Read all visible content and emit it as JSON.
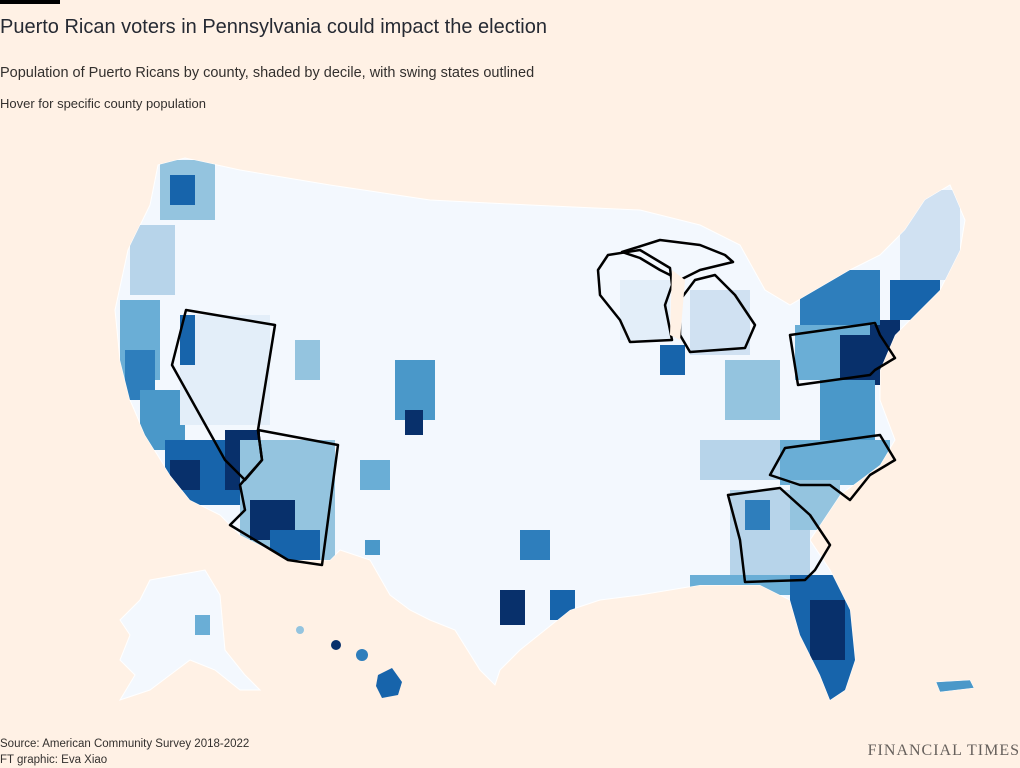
{
  "header": {
    "title": "Puerto Rican voters in Pennsylvania could impact the election",
    "subtitle": "Population of Puerto Ricans by county, shaded by decile, with swing states outlined",
    "hover_note": "Hover for specific county population"
  },
  "footer": {
    "source": "Source: American Community Survey 2018-2022",
    "credit": "FT graphic: Eva Xiao",
    "brand": "FINANCIAL TIMES"
  },
  "legend_scale": {
    "method": "decile",
    "colors": [
      "#f3f8fe",
      "#e3eef9",
      "#d0e1f2",
      "#b7d4ea",
      "#94c4df",
      "#6aaed6",
      "#4a98c9",
      "#2e7ebc",
      "#1764ab",
      "#08306b"
    ]
  },
  "map_data": {
    "swing_states": [
      "Nevada",
      "Arizona",
      "Wisconsin",
      "Michigan",
      "Pennsylvania",
      "North Carolina",
      "Georgia"
    ],
    "regions_by_decile": [
      {
        "region": "Florida",
        "decile": 10
      },
      {
        "region": "Central Florida (Orlando area)",
        "decile": 10
      },
      {
        "region": "New Jersey / New York City area",
        "decile": 10
      },
      {
        "region": "Eastern Pennsylvania",
        "decile": 10
      },
      {
        "region": "Connecticut / Massachusetts",
        "decile": 9
      },
      {
        "region": "Las Vegas, Nevada (Clark County)",
        "decile": 10
      },
      {
        "region": "Phoenix / Tucson, Arizona",
        "decile": 10
      },
      {
        "region": "Southern California",
        "decile": 10
      },
      {
        "region": "Hawaii",
        "decile": 9
      },
      {
        "region": "Central Texas / San Antonio / Houston",
        "decile": 9
      },
      {
        "region": "Chicago area, Illinois",
        "decile": 9
      },
      {
        "region": "Puerto Rico",
        "decile": 8
      },
      {
        "region": "Great Plains / Mountain West",
        "decile": 1
      }
    ]
  }
}
